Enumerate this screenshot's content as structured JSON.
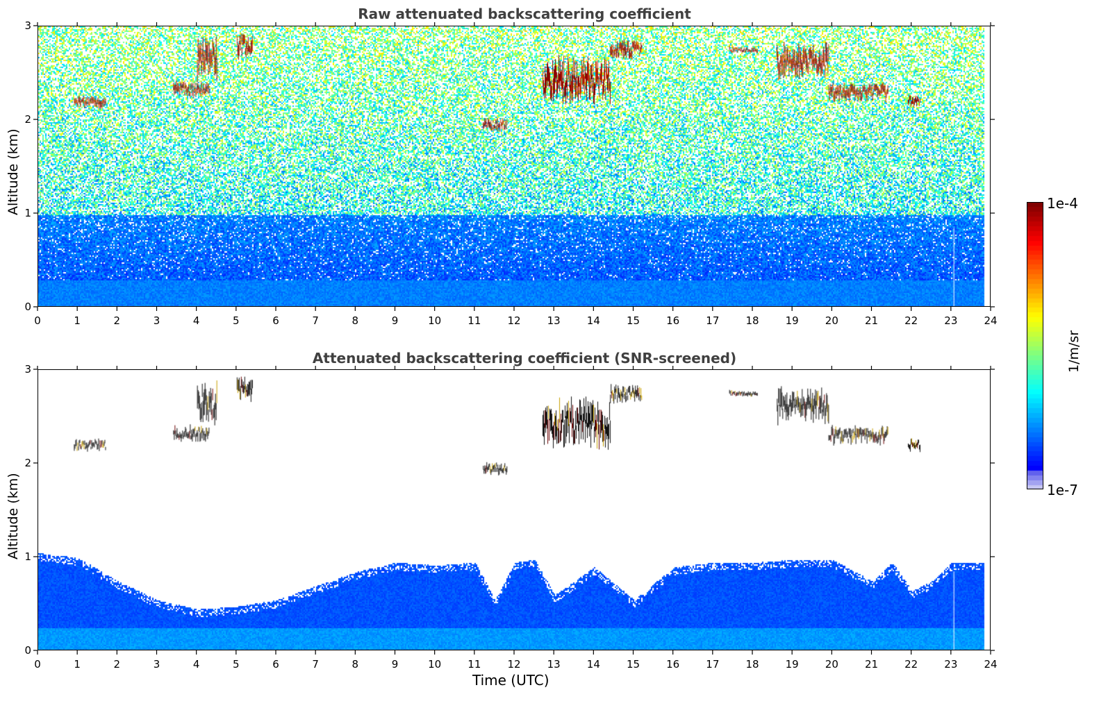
{
  "chart_data": [
    {
      "type": "heatmap",
      "title": "Raw attenuated backscattering coefficient",
      "xlabel": "",
      "ylabel": "Altitude (km)",
      "xlim": [
        0,
        24
      ],
      "ylim": [
        0,
        3
      ],
      "xticks": [
        "0",
        "1",
        "2",
        "3",
        "4",
        "5",
        "6",
        "7",
        "8",
        "9",
        "10",
        "11",
        "12",
        "13",
        "14",
        "15",
        "16",
        "17",
        "18",
        "19",
        "20",
        "21",
        "22",
        "23",
        "24"
      ],
      "yticks": [
        "0",
        "1",
        "2",
        "3"
      ],
      "data_end_time": 23.8,
      "cloud_layers": [
        {
          "x": [
            0.9,
            1.7
          ],
          "y": [
            2.1,
            2.3
          ]
        },
        {
          "x": [
            3.4,
            4.3
          ],
          "y": [
            2.2,
            2.45
          ]
        },
        {
          "x": [
            4.0,
            4.5
          ],
          "y": [
            2.3,
            3.0
          ]
        },
        {
          "x": [
            5.0,
            5.4
          ],
          "y": [
            2.6,
            3.0
          ]
        },
        {
          "x": [
            11.2,
            11.8
          ],
          "y": [
            1.85,
            2.05
          ]
        },
        {
          "x": [
            12.7,
            14.4
          ],
          "y": [
            2.05,
            2.8
          ]
        },
        {
          "x": [
            14.4,
            15.2
          ],
          "y": [
            2.6,
            2.9
          ]
        },
        {
          "x": [
            17.4,
            18.1
          ],
          "y": [
            2.7,
            2.8
          ]
        },
        {
          "x": [
            18.6,
            19.9
          ],
          "y": [
            2.35,
            2.9
          ]
        },
        {
          "x": [
            19.9,
            21.4
          ],
          "y": [
            2.15,
            2.45
          ]
        },
        {
          "x": [
            21.9,
            22.2
          ],
          "y": [
            2.1,
            2.3
          ]
        }
      ]
    },
    {
      "type": "heatmap",
      "title": "Attenuated backscattering coefficient (SNR-screened)",
      "xlabel": "Time (UTC)",
      "ylabel": "Altitude (km)",
      "xlim": [
        0,
        24
      ],
      "ylim": [
        0,
        3
      ],
      "xticks": [
        "0",
        "1",
        "2",
        "3",
        "4",
        "5",
        "6",
        "7",
        "8",
        "9",
        "10",
        "11",
        "12",
        "13",
        "14",
        "15",
        "16",
        "17",
        "18",
        "19",
        "20",
        "21",
        "22",
        "23",
        "24"
      ],
      "yticks": [
        "0",
        "1",
        "2",
        "3"
      ],
      "data_end_time": 23.8,
      "boundary_layer_top": {
        "x": [
          0,
          1,
          2,
          3,
          4,
          5,
          6,
          7,
          8,
          9,
          10,
          11,
          11.5,
          12,
          12.5,
          13,
          14,
          15,
          16,
          17,
          18,
          19,
          20,
          21,
          21.5,
          22,
          22.5,
          23,
          23.8
        ],
        "y": [
          1.05,
          1.0,
          0.75,
          0.55,
          0.45,
          0.48,
          0.55,
          0.7,
          0.85,
          0.95,
          0.92,
          0.95,
          0.55,
          0.95,
          0.98,
          0.6,
          0.9,
          0.55,
          0.9,
          0.95,
          0.95,
          0.98,
          0.98,
          0.75,
          0.95,
          0.65,
          0.75,
          0.95,
          0.95
        ]
      }
    }
  ],
  "colorbar": {
    "max_label": "1e-4",
    "min_label": "1e-7",
    "unit": "1/m/sr",
    "scale": "log",
    "colormap": "jet"
  }
}
